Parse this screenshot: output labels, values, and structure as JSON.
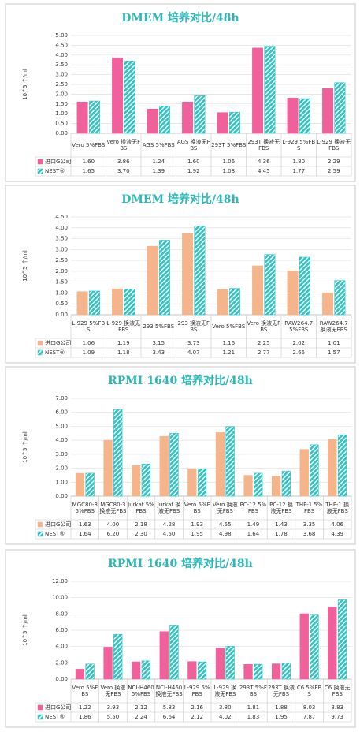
{
  "chart_data": [
    {
      "type": "bar",
      "title": "DMEM 培养对比/48h",
      "y_label": "10^5 个/ml",
      "categories": [
        "Vero 5%FBS",
        "Vero 换液无FBS",
        "AGS 5%FBS",
        "AGS 换液无FBS",
        "293T 5%FBS",
        "293T 换液无FBS",
        "L-929 5%FBS",
        "L-929 换液无FBS"
      ],
      "series": [
        {
          "name": "进口G公司",
          "color": "#f0609a",
          "hatch": false,
          "values": [
            1.6,
            3.86,
            1.24,
            1.6,
            1.06,
            4.36,
            1.8,
            2.29
          ],
          "value_labels": [
            "1.60",
            "3.86",
            "1.24",
            "1.60",
            "1.06",
            "4.36",
            "1.80",
            "2.29"
          ]
        },
        {
          "name": "NEST®",
          "color": "#2ec4c4",
          "hatch": true,
          "values": [
            1.65,
            3.7,
            1.39,
            1.92,
            1.08,
            4.45,
            1.77,
            2.59
          ],
          "value_labels": [
            "1.65",
            "3.70",
            "1.39",
            "1.92",
            "1.08",
            "4.45",
            "1.77",
            "2.59"
          ]
        }
      ],
      "ylim": [
        0,
        5
      ],
      "yticks": [
        {
          "value": 0,
          "label": "0.00"
        },
        {
          "value": 0.5,
          "label": "0.50"
        },
        {
          "value": 1,
          "label": "1.00"
        },
        {
          "value": 1.5,
          "label": "1.50"
        },
        {
          "value": 2,
          "label": "2.00"
        },
        {
          "value": 2.5,
          "label": "2.50"
        },
        {
          "value": 3,
          "label": "3.00"
        },
        {
          "value": 3.5,
          "label": "3.50"
        },
        {
          "value": 4,
          "label": "4.00"
        },
        {
          "value": 4.5,
          "label": "4.50"
        },
        {
          "value": 5,
          "label": "5.00"
        }
      ],
      "grid": true
    },
    {
      "type": "bar",
      "title": "DMEM 培养对比/48h",
      "y_label": "10^5 个/ml",
      "categories": [
        "L-929 5%FBS",
        "L-929 换液无FBS",
        "293 5%FBS",
        "293 换液无FBS",
        "Vero 5%FBS",
        "Vero 换液无FBS",
        "RAW264.7 5%FBS",
        "RAW264.7 换液无FBS"
      ],
      "series": [
        {
          "name": "进口G公司",
          "color": "#f5b48a",
          "hatch": false,
          "values": [
            1.06,
            1.19,
            3.15,
            3.73,
            1.16,
            2.25,
            2.02,
            1.01
          ],
          "value_labels": [
            "1.06",
            "1.19",
            "3.15",
            "3.73",
            "1.16",
            "2.25",
            "2.02",
            "1.01"
          ]
        },
        {
          "name": "NEST®",
          "color": "#2ec4c4",
          "hatch": true,
          "values": [
            1.09,
            1.18,
            3.43,
            4.07,
            1.21,
            2.77,
            2.65,
            1.57
          ],
          "value_labels": [
            "1.09",
            "1.18",
            "3.43",
            "4.07",
            "1.21",
            "2.77",
            "2.65",
            "1.57"
          ]
        }
      ],
      "ylim": [
        0,
        4.5
      ],
      "yticks": [
        {
          "value": 0,
          "label": "0.00"
        },
        {
          "value": 0.5,
          "label": "0.50"
        },
        {
          "value": 1,
          "label": "1.00"
        },
        {
          "value": 1.5,
          "label": "1.50"
        },
        {
          "value": 2,
          "label": "2.00"
        },
        {
          "value": 2.5,
          "label": "2.50"
        },
        {
          "value": 3,
          "label": "3.00"
        },
        {
          "value": 3.5,
          "label": "3.50"
        },
        {
          "value": 4,
          "label": "4.00"
        },
        {
          "value": 4.5,
          "label": "4.50"
        }
      ],
      "grid": true
    },
    {
      "type": "bar",
      "title": "RPMI 1640 培养对比/48h",
      "y_label": "10^5 个/ml",
      "categories": [
        "MGC80-3 5%FBS",
        "MGC80-3 换液无FBS",
        "Jurkat 5%FBS",
        "Jurkat 换液无FBS",
        "Vero 5%FBS",
        "Vero 换液无FBS",
        "PC-12 5%FBS",
        "PC-12 换液无FBS",
        "THP-1 5%FBS",
        "THP-1 换液无FBS"
      ],
      "series": [
        {
          "name": "进口G公司",
          "color": "#f5b48a",
          "hatch": false,
          "values": [
            1.63,
            4.0,
            2.18,
            4.28,
            1.93,
            4.55,
            1.49,
            1.43,
            3.35,
            4.06
          ],
          "value_labels": [
            "1.63",
            "4.00",
            "2.18",
            "4.28",
            "1.93",
            "4.55",
            "1.49",
            "1.43",
            "3.35",
            "4.06"
          ]
        },
        {
          "name": "NEST®",
          "color": "#2ec4c4",
          "hatch": true,
          "values": [
            1.64,
            6.2,
            2.3,
            4.5,
            1.95,
            4.98,
            1.64,
            1.78,
            3.68,
            4.39
          ],
          "value_labels": [
            "1.64",
            "6.20",
            "2.30",
            "4.50",
            "1.95",
            "4.98",
            "1.64",
            "1.78",
            "3.68",
            "4.39"
          ]
        }
      ],
      "ylim": [
        0,
        7
      ],
      "yticks": [
        {
          "value": 0,
          "label": "0.00"
        },
        {
          "value": 1,
          "label": "1.00"
        },
        {
          "value": 2,
          "label": "2.00"
        },
        {
          "value": 3,
          "label": "3.00"
        },
        {
          "value": 4,
          "label": "4.00"
        },
        {
          "value": 5,
          "label": "5.00"
        },
        {
          "value": 6,
          "label": "6.00"
        },
        {
          "value": 7,
          "label": "7.00"
        }
      ],
      "grid": true
    },
    {
      "type": "bar",
      "title": "RPMI 1640 培养对比/48h",
      "y_label": "10^5 个/ml",
      "categories": [
        "Vero 5%FBS",
        "Vero 换液无FBS",
        "NCI-H460 5%FBS",
        "NCI-H460 换液无FBS",
        "L-929 5%FBS",
        "L-929 换液无FBS",
        "293T 5%FBS",
        "293T 换液无FBS",
        "C6 5%FBS",
        "C6 换液无FBS"
      ],
      "series": [
        {
          "name": "进口G公司",
          "color": "#f0609a",
          "hatch": false,
          "values": [
            1.22,
            3.93,
            2.12,
            5.83,
            2.16,
            3.8,
            1.81,
            1.88,
            8.03,
            8.83
          ],
          "value_labels": [
            "1.22",
            "3.93",
            "2.12",
            "5.83",
            "2.16",
            "3.80",
            "1.81",
            "1.88",
            "8.03",
            "8.83"
          ]
        },
        {
          "name": "NEST®",
          "color": "#2ec4c4",
          "hatch": true,
          "values": [
            1.86,
            5.5,
            2.24,
            6.64,
            2.12,
            4.02,
            1.83,
            1.95,
            7.87,
            9.73
          ],
          "value_labels": [
            "1.86",
            "5.50",
            "2.24",
            "6.64",
            "2.12",
            "4.02",
            "1.83",
            "1.95",
            "7.87",
            "9.73"
          ]
        }
      ],
      "ylim": [
        0,
        12
      ],
      "yticks": [
        {
          "value": 0,
          "label": "0.00"
        },
        {
          "value": 2,
          "label": "2.00"
        },
        {
          "value": 4,
          "label": "4.00"
        },
        {
          "value": 6,
          "label": "6.00"
        },
        {
          "value": 8,
          "label": "8.00"
        },
        {
          "value": 10,
          "label": "10.00"
        },
        {
          "value": 12,
          "label": "12.00"
        }
      ],
      "grid": true
    }
  ]
}
